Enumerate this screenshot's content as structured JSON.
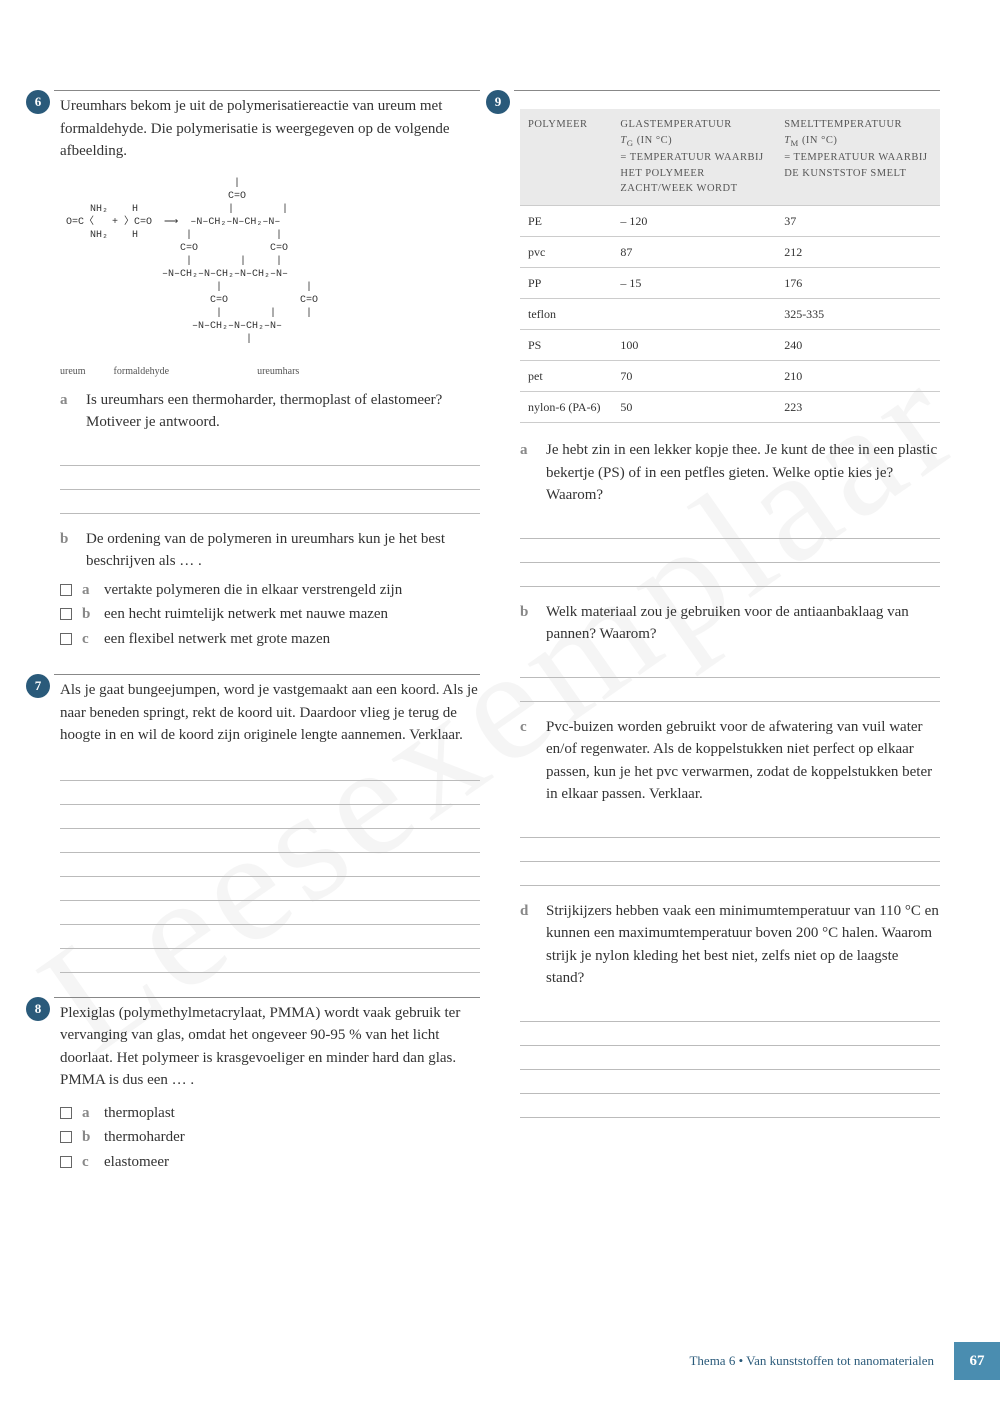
{
  "watermark": "Leesexemplaar",
  "footer": {
    "text": "Thema 6 • Van kunststoffen tot nanomaterialen",
    "page": "67"
  },
  "q6": {
    "num": "6",
    "text": "Ureumhars bekom je uit de polymerisatie­reactie van ureum met formaldehyde. Die polymerisatie is weergegeven op de volgende afbeelding.",
    "chem_labels": {
      "a": "ureum",
      "b": "formaldehyde",
      "c": "ureumhars"
    },
    "a": {
      "text": "Is ureumhars een thermoharder, thermoplast of elastomeer? Motiveer je antwoord."
    },
    "b": {
      "text": "De ordening van de polymeren in ureumhars kun je het best beschrijven als … .",
      "opts": {
        "a": "vertakte polymeren die in elkaar verstrengeld zijn",
        "b": "een hecht ruimtelijk netwerk met nauwe mazen",
        "c": "een flexibel netwerk met grote mazen"
      }
    }
  },
  "q7": {
    "num": "7",
    "text": "Als je gaat bungeejumpen, word je vastgemaakt aan een koord. Als je naar beneden springt, rekt de koord uit. Daardoor vlieg je terug de hoogte in en wil de koord zijn originele lengte aannemen. Verklaar."
  },
  "q8": {
    "num": "8",
    "text": "Plexiglas (polymethylmetacrylaat, PMMA) wordt vaak gebruik ter vervanging van glas, omdat het ongeveer 90-95 % van het licht doorlaat. Het polymeer is krasgevoeliger en minder hard dan glas. PMMA is dus een … .",
    "opts": {
      "a": "thermoplast",
      "b": "thermoharder",
      "c": "elastomeer"
    }
  },
  "q9": {
    "num": "9",
    "table": {
      "headers": {
        "c1": "POLYMEER",
        "c2": "GLASTEMPERATUUR",
        "c2_sub": "Tg (in °C) = temperatuur waarbij het polymeer zacht/week wordt",
        "c3": "SMELTTEMPERATUUR",
        "c3_sub": "Tm (in °C) = temperatuur waarbij de kunststof smelt"
      },
      "rows": [
        [
          "PE",
          "– 120",
          "37"
        ],
        [
          "pvc",
          "87",
          "212"
        ],
        [
          "PP",
          "– 15",
          "176"
        ],
        [
          "teflon",
          "",
          "325-335"
        ],
        [
          "PS",
          "100",
          "240"
        ],
        [
          "pet",
          "70",
          "210"
        ],
        [
          "nylon-6 (PA-6)",
          "50",
          "223"
        ]
      ]
    },
    "a": "Je hebt zin in een lekker kopje thee. Je kunt de thee in een plastic bekertje (PS) of in een petfles gieten. Welke optie kies je? Waarom?",
    "b": "Welk materiaal zou je gebruiken voor de anti­aanbaklaag van pannen? Waarom?",
    "c": "Pvc-buizen worden gebruikt voor de afwatering van vuil water en/of regenwater. Als de koppelstukken niet perfect op elkaar passen, kun je het pvc verwarmen, zodat de koppelstukken beter in elkaar passen. Verklaar.",
    "d": "Strijkijzers hebben vaak een minimum­temperatuur van 110 °C en kunnen een maximumtemperatuur boven 200 °C halen. Waarom strijk je nylon kleding het best niet, zelfs niet op de laagste stand?"
  }
}
